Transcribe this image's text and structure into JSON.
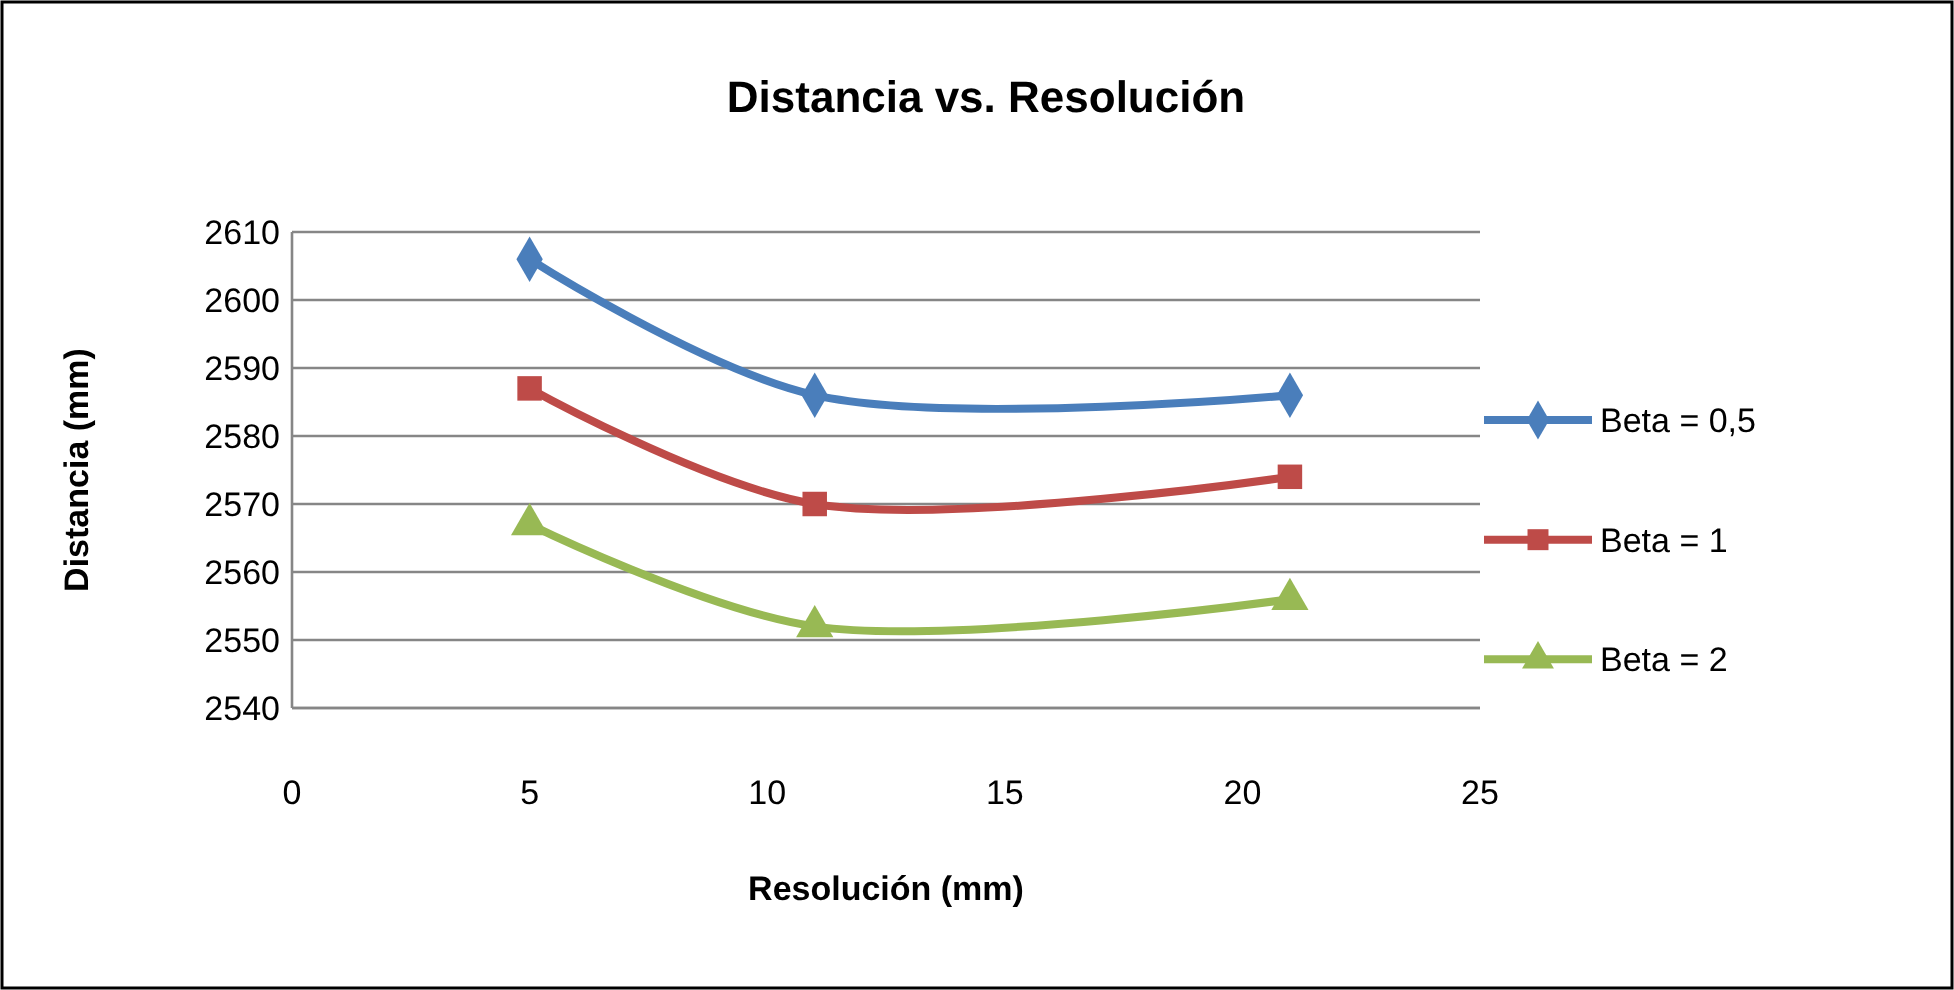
{
  "chart_data": {
    "type": "line",
    "title": "Distancia vs. Resolución",
    "xlabel": "Resolución (mm)",
    "ylabel": "Distancia (mm)",
    "x": [
      5,
      11,
      21
    ],
    "series": [
      {
        "name": "Beta = 0,5",
        "color": "#4a7ebb",
        "marker": "diamond",
        "values": [
          2606,
          2586,
          2586
        ]
      },
      {
        "name": "Beta = 1",
        "color": "#be4b48",
        "marker": "square",
        "values": [
          2587,
          2570,
          2574
        ]
      },
      {
        "name": "Beta = 2",
        "color": "#98b954",
        "marker": "triangle",
        "values": [
          2567,
          2552,
          2556
        ]
      }
    ],
    "xlim": [
      0,
      25
    ],
    "xticks": [
      0,
      5,
      10,
      15,
      20,
      25
    ],
    "ylim": [
      2540,
      2610
    ],
    "yticks": [
      2540,
      2550,
      2560,
      2570,
      2580,
      2590,
      2600,
      2610
    ],
    "grid": "y",
    "legend": "right",
    "line_style": "solid"
  }
}
